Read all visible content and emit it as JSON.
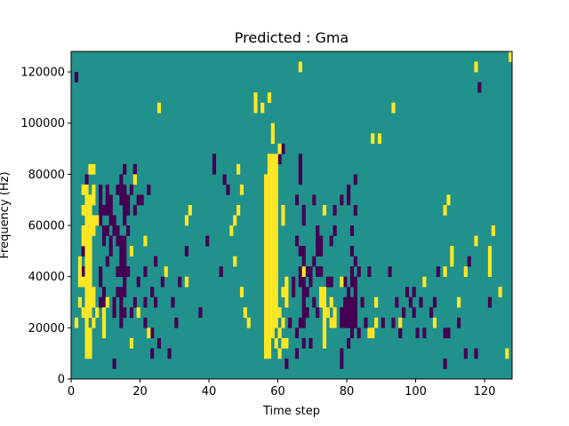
{
  "chart_data": {
    "type": "heatmap",
    "title": "Predicted : Gma",
    "xlabel": "Time step",
    "ylabel": "Frequency (Hz)",
    "xlim": [
      0,
      128
    ],
    "ylim": [
      0,
      128000
    ],
    "xticks": [
      0,
      20,
      40,
      60,
      80,
      100,
      120
    ],
    "yticks": [
      0,
      20000,
      40000,
      60000,
      80000,
      100000,
      120000
    ],
    "grid": false,
    "colormap": "viridis",
    "colors": {
      "background": "#21918c",
      "high": "#fde725",
      "low": "#440154"
    },
    "bin_size": {
      "time": 1,
      "frequency": 4000
    },
    "high_cells": [
      [
        1,
        20000
      ],
      [
        2,
        28000
      ],
      [
        2,
        36000
      ],
      [
        2,
        40000
      ],
      [
        2,
        44000
      ],
      [
        3,
        24000
      ],
      [
        3,
        36000
      ],
      [
        3,
        52000
      ],
      [
        3,
        56000
      ],
      [
        3,
        64000
      ],
      [
        3,
        72000
      ],
      [
        4,
        8000
      ],
      [
        4,
        12000
      ],
      [
        4,
        16000
      ],
      [
        4,
        20000
      ],
      [
        4,
        24000
      ],
      [
        4,
        28000
      ],
      [
        4,
        32000
      ],
      [
        4,
        36000
      ],
      [
        4,
        40000
      ],
      [
        4,
        44000
      ],
      [
        4,
        48000
      ],
      [
        4,
        52000
      ],
      [
        4,
        56000
      ],
      [
        4,
        60000
      ],
      [
        4,
        64000
      ],
      [
        4,
        68000
      ],
      [
        4,
        72000
      ],
      [
        5,
        8000
      ],
      [
        5,
        12000
      ],
      [
        5,
        16000
      ],
      [
        5,
        24000
      ],
      [
        5,
        28000
      ],
      [
        5,
        32000
      ],
      [
        5,
        36000
      ],
      [
        5,
        40000
      ],
      [
        5,
        44000
      ],
      [
        5,
        48000
      ],
      [
        5,
        52000
      ],
      [
        5,
        56000
      ],
      [
        5,
        60000
      ],
      [
        5,
        64000
      ],
      [
        5,
        68000
      ],
      [
        5,
        80000
      ],
      [
        6,
        20000
      ],
      [
        6,
        28000
      ],
      [
        6,
        32000
      ],
      [
        6,
        56000
      ],
      [
        6,
        60000
      ],
      [
        6,
        68000
      ],
      [
        6,
        72000
      ],
      [
        6,
        80000
      ],
      [
        7,
        24000
      ],
      [
        7,
        60000
      ],
      [
        9,
        16000
      ],
      [
        9,
        20000
      ],
      [
        9,
        24000
      ],
      [
        10,
        28000
      ],
      [
        17,
        12000
      ],
      [
        17,
        48000
      ],
      [
        18,
        76000
      ],
      [
        19,
        24000
      ],
      [
        21,
        52000
      ],
      [
        22,
        16000
      ],
      [
        25,
        104000
      ],
      [
        27,
        40000
      ],
      [
        33,
        36000
      ],
      [
        33,
        60000
      ],
      [
        34,
        64000
      ],
      [
        46,
        56000
      ],
      [
        47,
        44000
      ],
      [
        47,
        60000
      ],
      [
        48,
        64000
      ],
      [
        48,
        80000
      ],
      [
        49,
        32000
      ],
      [
        49,
        72000
      ],
      [
        50,
        24000
      ],
      [
        51,
        20000
      ],
      [
        53,
        104000
      ],
      [
        53,
        108000
      ],
      [
        55,
        104000
      ],
      [
        56,
        8000
      ],
      [
        56,
        12000
      ],
      [
        56,
        16000
      ],
      [
        56,
        20000
      ],
      [
        56,
        24000
      ],
      [
        56,
        28000
      ],
      [
        56,
        32000
      ],
      [
        56,
        36000
      ],
      [
        56,
        40000
      ],
      [
        56,
        44000
      ],
      [
        56,
        48000
      ],
      [
        56,
        52000
      ],
      [
        56,
        56000
      ],
      [
        56,
        60000
      ],
      [
        56,
        64000
      ],
      [
        56,
        68000
      ],
      [
        56,
        72000
      ],
      [
        56,
        76000
      ],
      [
        57,
        8000
      ],
      [
        57,
        12000
      ],
      [
        57,
        16000
      ],
      [
        57,
        20000
      ],
      [
        57,
        24000
      ],
      [
        57,
        28000
      ],
      [
        57,
        32000
      ],
      [
        57,
        36000
      ],
      [
        57,
        40000
      ],
      [
        57,
        44000
      ],
      [
        57,
        48000
      ],
      [
        57,
        52000
      ],
      [
        57,
        56000
      ],
      [
        57,
        60000
      ],
      [
        57,
        64000
      ],
      [
        57,
        68000
      ],
      [
        57,
        72000
      ],
      [
        57,
        76000
      ],
      [
        57,
        80000
      ],
      [
        57,
        84000
      ],
      [
        57,
        108000
      ],
      [
        58,
        16000
      ],
      [
        58,
        20000
      ],
      [
        58,
        24000
      ],
      [
        58,
        28000
      ],
      [
        58,
        32000
      ],
      [
        58,
        36000
      ],
      [
        58,
        40000
      ],
      [
        58,
        44000
      ],
      [
        58,
        48000
      ],
      [
        58,
        52000
      ],
      [
        58,
        56000
      ],
      [
        58,
        60000
      ],
      [
        58,
        64000
      ],
      [
        58,
        68000
      ],
      [
        58,
        72000
      ],
      [
        58,
        76000
      ],
      [
        58,
        80000
      ],
      [
        58,
        84000
      ],
      [
        58,
        92000
      ],
      [
        58,
        96000
      ],
      [
        59,
        12000
      ],
      [
        59,
        20000
      ],
      [
        59,
        24000
      ],
      [
        59,
        28000
      ],
      [
        59,
        32000
      ],
      [
        59,
        36000
      ],
      [
        59,
        40000
      ],
      [
        59,
        44000
      ],
      [
        59,
        48000
      ],
      [
        59,
        52000
      ],
      [
        59,
        56000
      ],
      [
        59,
        60000
      ],
      [
        59,
        64000
      ],
      [
        59,
        68000
      ],
      [
        59,
        72000
      ],
      [
        59,
        76000
      ],
      [
        59,
        80000
      ],
      [
        59,
        84000
      ],
      [
        60,
        8000
      ],
      [
        60,
        16000
      ],
      [
        60,
        24000
      ],
      [
        60,
        88000
      ],
      [
        61,
        12000
      ],
      [
        61,
        20000
      ],
      [
        61,
        32000
      ],
      [
        61,
        60000
      ],
      [
        61,
        64000
      ],
      [
        62,
        12000
      ],
      [
        62,
        28000
      ],
      [
        62,
        32000
      ],
      [
        62,
        36000
      ],
      [
        66,
        120000
      ],
      [
        67,
        40000
      ],
      [
        72,
        32000
      ],
      [
        72,
        28000
      ],
      [
        73,
        12000
      ],
      [
        73,
        16000
      ],
      [
        73,
        20000
      ],
      [
        73,
        24000
      ],
      [
        73,
        28000
      ],
      [
        73,
        32000
      ],
      [
        73,
        64000
      ],
      [
        74,
        24000
      ],
      [
        75,
        20000
      ],
      [
        75,
        28000
      ],
      [
        76,
        20000
      ],
      [
        76,
        24000
      ],
      [
        78,
        36000
      ],
      [
        86,
        16000
      ],
      [
        87,
        16000
      ],
      [
        87,
        92000
      ],
      [
        88,
        20000
      ],
      [
        88,
        28000
      ],
      [
        89,
        92000
      ],
      [
        93,
        104000
      ],
      [
        95,
        20000
      ],
      [
        102,
        36000
      ],
      [
        105,
        20000
      ],
      [
        108,
        40000
      ],
      [
        108,
        64000
      ],
      [
        109,
        68000
      ],
      [
        110,
        44000
      ],
      [
        110,
        48000
      ],
      [
        112,
        28000
      ],
      [
        114,
        40000
      ],
      [
        117,
        52000
      ],
      [
        117,
        120000
      ],
      [
        121,
        40000
      ],
      [
        121,
        44000
      ],
      [
        121,
        48000
      ],
      [
        122,
        56000
      ],
      [
        124,
        32000
      ],
      [
        126,
        8000
      ],
      [
        127,
        124000
      ]
    ],
    "low_cells": [
      [
        1,
        116000
      ],
      [
        2,
        44000
      ],
      [
        3,
        48000
      ],
      [
        3,
        40000
      ],
      [
        4,
        76000
      ],
      [
        8,
        28000
      ],
      [
        8,
        36000
      ],
      [
        8,
        40000
      ],
      [
        8,
        60000
      ],
      [
        8,
        64000
      ],
      [
        8,
        68000
      ],
      [
        8,
        72000
      ],
      [
        9,
        28000
      ],
      [
        9,
        32000
      ],
      [
        9,
        52000
      ],
      [
        9,
        56000
      ],
      [
        9,
        64000
      ],
      [
        10,
        44000
      ],
      [
        10,
        56000
      ],
      [
        10,
        64000
      ],
      [
        10,
        68000
      ],
      [
        10,
        72000
      ],
      [
        11,
        48000
      ],
      [
        11,
        52000
      ],
      [
        11,
        60000
      ],
      [
        11,
        64000
      ],
      [
        11,
        68000
      ],
      [
        12,
        4000
      ],
      [
        12,
        24000
      ],
      [
        12,
        28000
      ],
      [
        12,
        56000
      ],
      [
        12,
        60000
      ],
      [
        13,
        32000
      ],
      [
        13,
        40000
      ],
      [
        13,
        52000
      ],
      [
        13,
        56000
      ],
      [
        13,
        72000
      ],
      [
        14,
        20000
      ],
      [
        14,
        24000
      ],
      [
        14,
        28000
      ],
      [
        14,
        32000
      ],
      [
        14,
        40000
      ],
      [
        14,
        44000
      ],
      [
        14,
        48000
      ],
      [
        14,
        52000
      ],
      [
        14,
        68000
      ],
      [
        14,
        72000
      ],
      [
        14,
        76000
      ],
      [
        15,
        24000
      ],
      [
        15,
        32000
      ],
      [
        15,
        36000
      ],
      [
        15,
        40000
      ],
      [
        15,
        44000
      ],
      [
        15,
        48000
      ],
      [
        15,
        52000
      ],
      [
        15,
        60000
      ],
      [
        15,
        64000
      ],
      [
        15,
        68000
      ],
      [
        15,
        72000
      ],
      [
        15,
        80000
      ],
      [
        16,
        40000
      ],
      [
        16,
        56000
      ],
      [
        16,
        64000
      ],
      [
        16,
        68000
      ],
      [
        17,
        24000
      ],
      [
        17,
        72000
      ],
      [
        18,
        28000
      ],
      [
        18,
        64000
      ],
      [
        18,
        80000
      ],
      [
        19,
        36000
      ],
      [
        19,
        68000
      ],
      [
        20,
        68000
      ],
      [
        21,
        20000
      ],
      [
        21,
        28000
      ],
      [
        21,
        40000
      ],
      [
        22,
        72000
      ],
      [
        23,
        8000
      ],
      [
        23,
        16000
      ],
      [
        23,
        32000
      ],
      [
        24,
        28000
      ],
      [
        24,
        44000
      ],
      [
        25,
        12000
      ],
      [
        26,
        36000
      ],
      [
        28,
        8000
      ],
      [
        29,
        28000
      ],
      [
        30,
        20000
      ],
      [
        31,
        36000
      ],
      [
        33,
        48000
      ],
      [
        37,
        24000
      ],
      [
        39,
        52000
      ],
      [
        41,
        84000
      ],
      [
        41,
        80000
      ],
      [
        43,
        40000
      ],
      [
        44,
        76000
      ],
      [
        45,
        72000
      ],
      [
        60,
        84000
      ],
      [
        61,
        88000
      ],
      [
        62,
        4000
      ],
      [
        62,
        28000
      ],
      [
        63,
        20000
      ],
      [
        64,
        32000
      ],
      [
        64,
        36000
      ],
      [
        65,
        8000
      ],
      [
        65,
        16000
      ],
      [
        65,
        52000
      ],
      [
        65,
        68000
      ],
      [
        66,
        20000
      ],
      [
        66,
        36000
      ],
      [
        66,
        40000
      ],
      [
        66,
        48000
      ],
      [
        66,
        76000
      ],
      [
        66,
        80000
      ],
      [
        66,
        84000
      ],
      [
        67,
        12000
      ],
      [
        67,
        20000
      ],
      [
        67,
        24000
      ],
      [
        67,
        28000
      ],
      [
        67,
        32000
      ],
      [
        67,
        36000
      ],
      [
        67,
        40000
      ],
      [
        67,
        44000
      ],
      [
        67,
        48000
      ],
      [
        67,
        60000
      ],
      [
        67,
        64000
      ],
      [
        68,
        24000
      ],
      [
        68,
        32000
      ],
      [
        68,
        40000
      ],
      [
        69,
        12000
      ],
      [
        69,
        36000
      ],
      [
        69,
        40000
      ],
      [
        70,
        28000
      ],
      [
        70,
        44000
      ],
      [
        70,
        68000
      ],
      [
        71,
        24000
      ],
      [
        71,
        40000
      ],
      [
        71,
        48000
      ],
      [
        71,
        52000
      ],
      [
        71,
        56000
      ],
      [
        72,
        40000
      ],
      [
        72,
        48000
      ],
      [
        72,
        52000
      ],
      [
        74,
        36000
      ],
      [
        75,
        36000
      ],
      [
        75,
        52000
      ],
      [
        76,
        56000
      ],
      [
        76,
        64000
      ],
      [
        78,
        4000
      ],
      [
        78,
        8000
      ],
      [
        78,
        20000
      ],
      [
        78,
        24000
      ],
      [
        78,
        68000
      ],
      [
        79,
        20000
      ],
      [
        79,
        24000
      ],
      [
        79,
        28000
      ],
      [
        79,
        36000
      ],
      [
        80,
        12000
      ],
      [
        80,
        20000
      ],
      [
        80,
        24000
      ],
      [
        80,
        28000
      ],
      [
        80,
        32000
      ],
      [
        80,
        68000
      ],
      [
        80,
        72000
      ],
      [
        81,
        16000
      ],
      [
        81,
        20000
      ],
      [
        81,
        24000
      ],
      [
        81,
        28000
      ],
      [
        81,
        36000
      ],
      [
        81,
        40000
      ],
      [
        81,
        48000
      ],
      [
        81,
        56000
      ],
      [
        82,
        20000
      ],
      [
        82,
        24000
      ],
      [
        82,
        28000
      ],
      [
        82,
        32000
      ],
      [
        82,
        36000
      ],
      [
        82,
        44000
      ],
      [
        82,
        64000
      ],
      [
        82,
        76000
      ],
      [
        83,
        16000
      ],
      [
        83,
        40000
      ],
      [
        84,
        28000
      ],
      [
        85,
        20000
      ],
      [
        86,
        16000
      ],
      [
        86,
        40000
      ],
      [
        90,
        20000
      ],
      [
        92,
        40000
      ],
      [
        93,
        20000
      ],
      [
        94,
        28000
      ],
      [
        95,
        16000
      ],
      [
        96,
        24000
      ],
      [
        97,
        32000
      ],
      [
        98,
        28000
      ],
      [
        99,
        32000
      ],
      [
        99,
        24000
      ],
      [
        100,
        16000
      ],
      [
        101,
        28000
      ],
      [
        102,
        16000
      ],
      [
        104,
        24000
      ],
      [
        105,
        28000
      ],
      [
        106,
        40000
      ],
      [
        108,
        4000
      ],
      [
        108,
        16000
      ],
      [
        109,
        16000
      ],
      [
        112,
        20000
      ],
      [
        114,
        8000
      ],
      [
        115,
        44000
      ],
      [
        117,
        8000
      ],
      [
        118,
        112000
      ],
      [
        121,
        28000
      ]
    ]
  }
}
